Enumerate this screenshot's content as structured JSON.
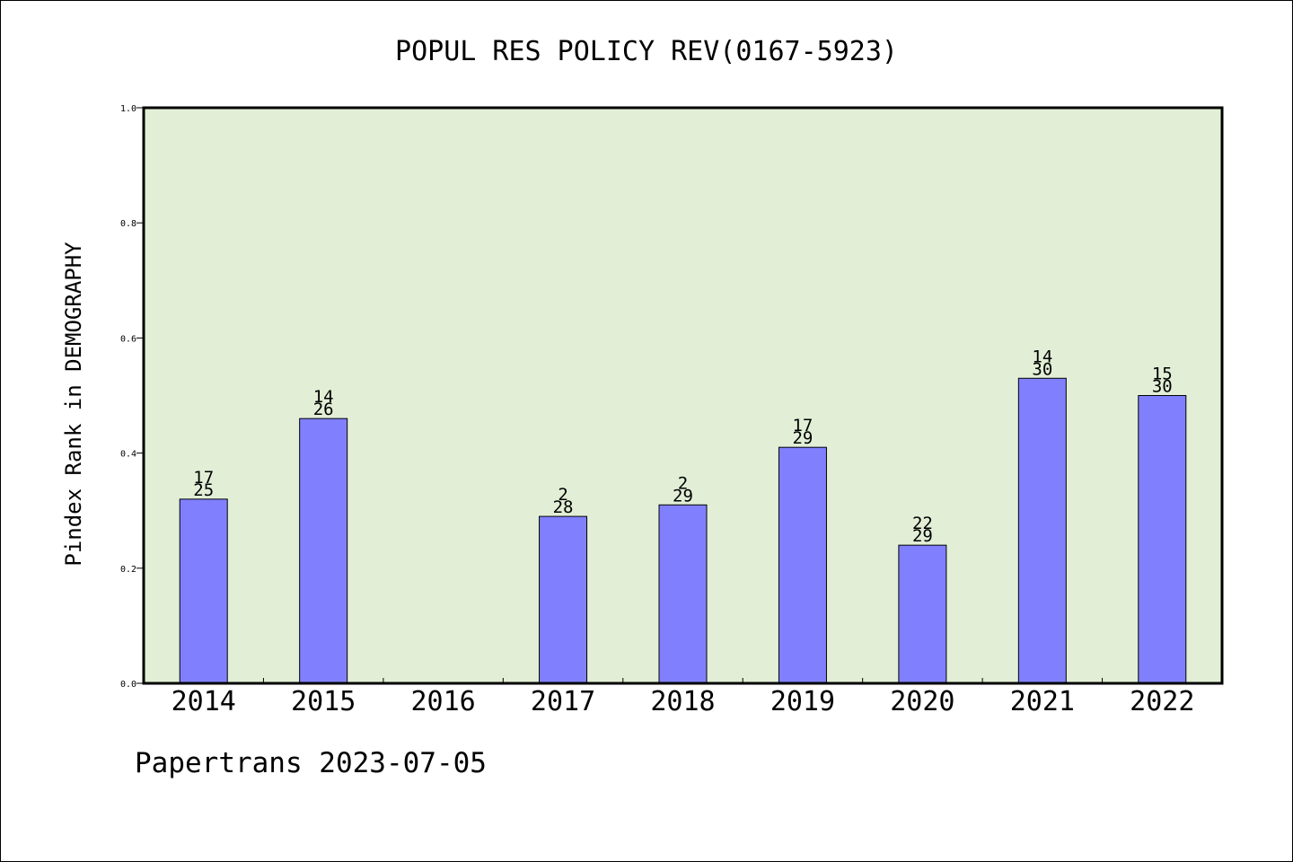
{
  "chart_data": {
    "type": "bar",
    "title": "POPUL RES POLICY REV(0167-5923)",
    "ylabel": "Pindex Rank in DEMOGRAPHY",
    "xlabel": "",
    "categories": [
      "2014",
      "2015",
      "2016",
      "2017",
      "2018",
      "2019",
      "2020",
      "2021",
      "2022"
    ],
    "values": [
      0.32,
      0.46,
      null,
      0.29,
      0.31,
      0.41,
      0.24,
      0.53,
      0.5
    ],
    "labels_top": [
      "17",
      "14",
      "",
      "2",
      "2",
      "17",
      "22",
      "14",
      "15"
    ],
    "labels_bottom": [
      "25",
      "26",
      "",
      "28",
      "29",
      "29",
      "29",
      "30",
      "30"
    ],
    "ylim": [
      0,
      1.0
    ],
    "yticks": [
      "0.0",
      "0.2",
      "0.4",
      "0.6",
      "0.8",
      "1.0"
    ],
    "grid": false,
    "colors": {
      "bar": "#8080ff",
      "plot_background": "#e2efd6",
      "axis": "#000000"
    }
  },
  "footer": {
    "text": "Papertrans 2023-07-05"
  }
}
